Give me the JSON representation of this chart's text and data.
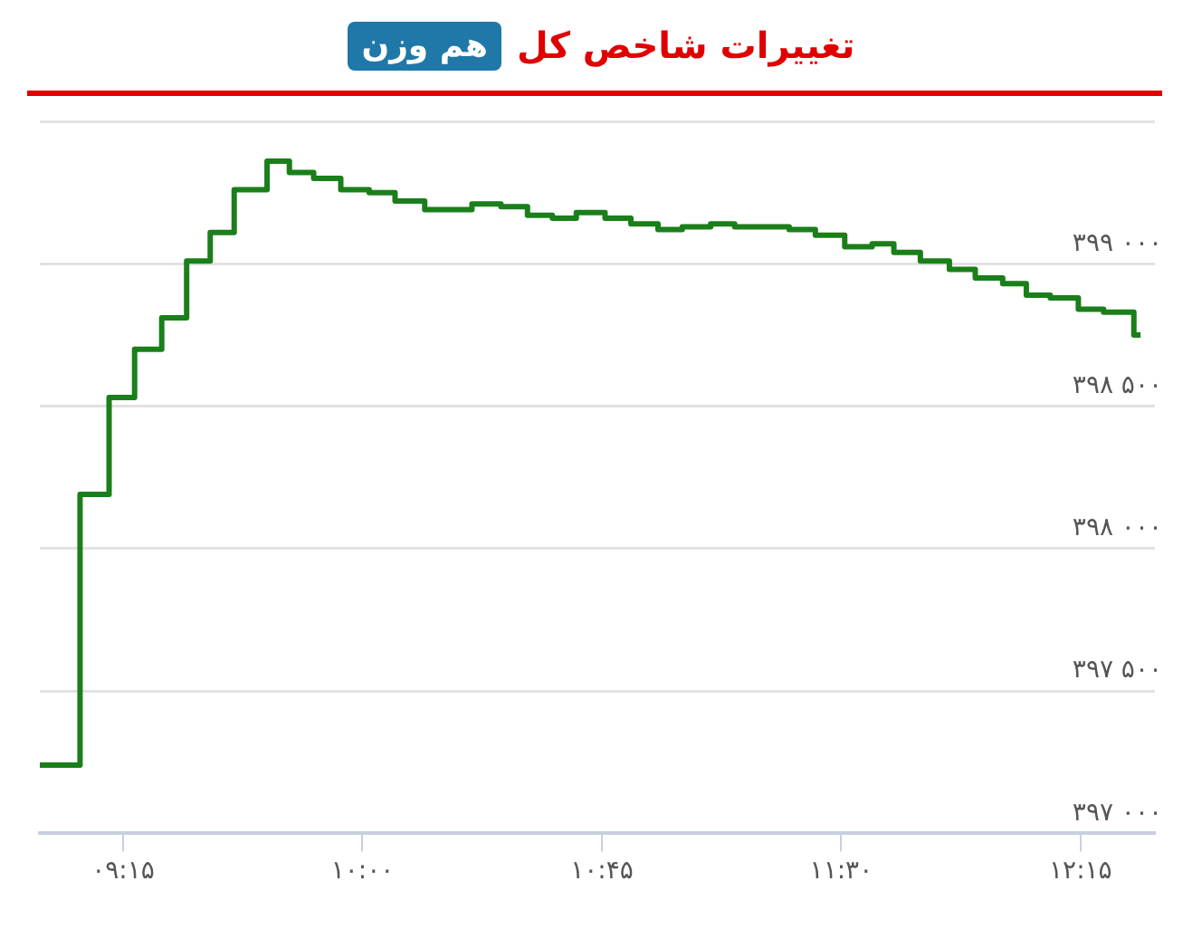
{
  "chart_data": {
    "type": "step",
    "title": "تغییرات شاخص کل",
    "subtitle": "هم وزن",
    "x": [
      8.989,
      9.115,
      9.206,
      9.286,
      9.371,
      9.449,
      9.523,
      9.598,
      9.701,
      9.771,
      9.847,
      9.932,
      10.021,
      10.102,
      10.195,
      10.343,
      10.434,
      10.517,
      10.595,
      10.67,
      10.76,
      10.841,
      10.926,
      11.002,
      11.091,
      11.166,
      11.337,
      11.419,
      11.511,
      11.597,
      11.665,
      11.748,
      11.839,
      11.92,
      12.006,
      12.08,
      12.155,
      12.243,
      12.322,
      12.417,
      12.438
    ],
    "series": [
      {
        "color": "#1a7f1a",
        "values": [
          397240,
          398190,
          398530,
          398700,
          398810,
          399010,
          399110,
          399260,
          399360,
          399320,
          399300,
          399260,
          399250,
          399220,
          399190,
          399210,
          399200,
          399170,
          399160,
          399180,
          399160,
          399140,
          399120,
          399130,
          399140,
          399130,
          399120,
          399100,
          399060,
          399070,
          399040,
          399010,
          398980,
          398950,
          398930,
          398890,
          398880,
          398840,
          398830,
          398750,
          398750
        ]
      }
    ],
    "xlim": [
      8.989,
      12.483
    ],
    "xticks": [
      {
        "value": 9.25,
        "label": "۰۹:۱۵"
      },
      {
        "value": 10,
        "label": "۱۰:۰۰"
      },
      {
        "value": 10.75,
        "label": "۱۰:۴۵"
      },
      {
        "value": 11.5,
        "label": "۱۱:۳۰"
      },
      {
        "value": 12.25,
        "label": "۱۲:۱۵"
      }
    ],
    "ylim": [
      397000,
      399500
    ],
    "yticks": [
      {
        "value": 397000,
        "label": "۳۹۷ ۰۰۰"
      },
      {
        "value": 397500,
        "label": "۳۹۷ ۵۰۰"
      },
      {
        "value": 398000,
        "label": "۳۹۸ ۰۰۰"
      },
      {
        "value": 398500,
        "label": "۳۹۸ ۵۰۰"
      },
      {
        "value": 399000,
        "label": "۳۹۹ ۰۰۰"
      },
      {
        "value": 399500,
        "label": null
      }
    ],
    "grid": "y",
    "legend": false,
    "marker": "none",
    "line_style": "solid"
  }
}
